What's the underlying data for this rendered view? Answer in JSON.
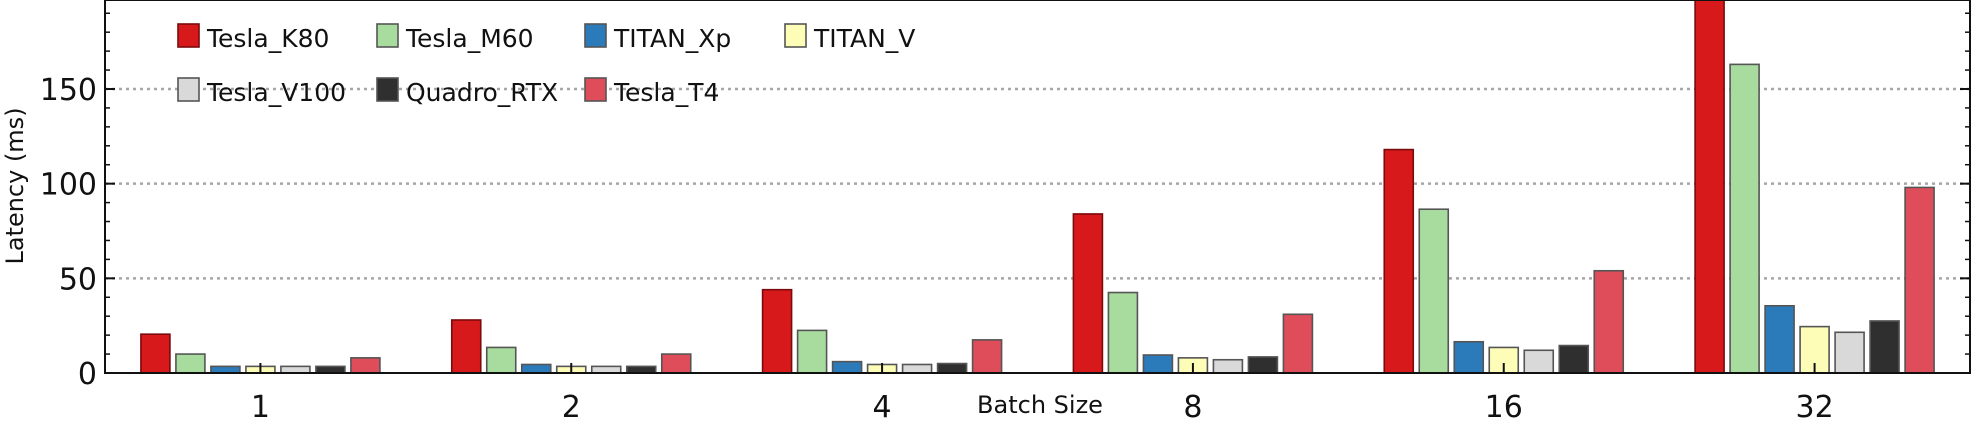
{
  "chart_data": {
    "type": "bar",
    "title": "",
    "xlabel": "Batch Size",
    "ylabel": "Latency (ms)",
    "categories": [
      "1",
      "2",
      "4",
      "8",
      "16",
      "32"
    ],
    "ylim": [
      0,
      197
    ],
    "yticks": [
      "0",
      "50",
      "100",
      "150"
    ],
    "grid": "horizontal dotted",
    "legend_position": "top-left",
    "series": [
      {
        "name": "Tesla_K80",
        "color": "#d7191c",
        "values": [
          20.5,
          28,
          44,
          84,
          118,
          197
        ]
      },
      {
        "name": "Tesla_M60",
        "color": "#a8dc9f",
        "values": [
          10,
          13.5,
          22.5,
          42.5,
          86.5,
          163
        ]
      },
      {
        "name": "TITAN_Xp",
        "color": "#2b7bba",
        "values": [
          3.5,
          4.5,
          6,
          9.5,
          16.5,
          35.5
        ]
      },
      {
        "name": "TITAN_V",
        "color": "#fdfdb8",
        "values": [
          3.5,
          3.5,
          4.5,
          8,
          13.5,
          24.5
        ]
      },
      {
        "name": "Tesla_V100",
        "color": "#d9d9d9",
        "values": [
          3.5,
          3.5,
          4.5,
          7,
          12,
          21.5
        ]
      },
      {
        "name": "Quadro_RTX",
        "color": "#2f2f2f",
        "values": [
          3.5,
          3.5,
          5,
          8.5,
          14.5,
          27.5
        ]
      },
      {
        "name": "Tesla_T4",
        "color": "#df4d5a",
        "values": [
          8,
          10,
          17.5,
          31,
          54,
          98
        ]
      }
    ]
  }
}
